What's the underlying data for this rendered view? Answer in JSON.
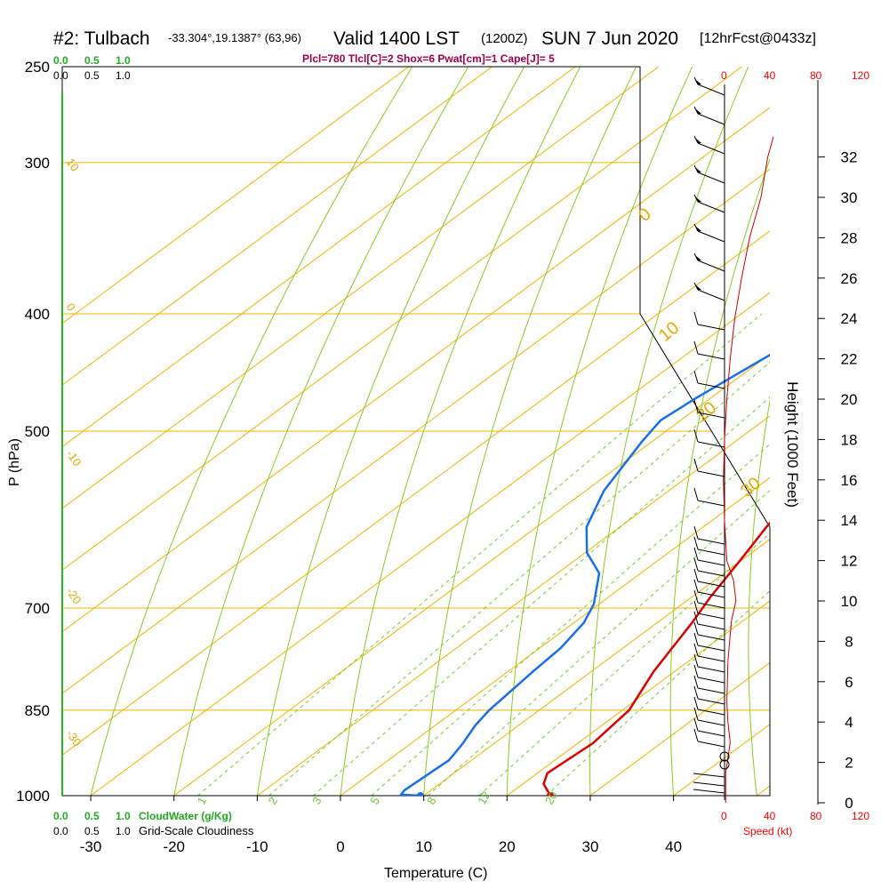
{
  "header": {
    "station": "#2: Tulbach",
    "coords": "-33.304°,19.1387° (63,96)",
    "valid": "Valid 1400 LST",
    "zulu": "(1200Z)",
    "date": "SUN 7 Jun 2020",
    "forecast": "[12hrFcst@0433z]"
  },
  "parameters": "Plcl=780 Tlcl[C]=2 Shox=6 Pwat[cm]=1 Cape[J]= 5",
  "legend": {
    "cloud_water_scale": [
      "0.0",
      "0.5",
      "1.0"
    ],
    "cloud_water_label": "CloudWater (g/Kg)",
    "cloudiness_scale": [
      "0.0",
      "0.5",
      "1.0"
    ],
    "cloudiness_label": "Grid-Scale Cloudiness",
    "speed_label": "Speed (kt)",
    "speed_ticks": [
      "0",
      "40",
      "80",
      "120"
    ]
  },
  "colors": {
    "isotherm": "#f0b400",
    "dry_adiabat": "#88cc22",
    "mixing_ratio": "#77cc33",
    "temperature": "#dd0000",
    "dewpoint": "#1a6fe8",
    "wind_speed": "#cc0000",
    "cloud_water": "#22aa22"
  },
  "chart_data": {
    "type": "line",
    "title": "#2: Tulbach Valid 1400 LST (1200Z) SUN 7 Jun 2020 [12hrFcst@0433z]",
    "xlabel": "Temperature (C)",
    "ylabel": "P (hPa)",
    "y2label": "Height (1000 Feet)",
    "x_ticks": [
      -30,
      -20,
      -10,
      0,
      10,
      20,
      30,
      40
    ],
    "p_ticks": [
      250,
      300,
      400,
      500,
      700,
      850,
      1000
    ],
    "height_ticks": [
      0,
      2,
      4,
      6,
      8,
      10,
      12,
      14,
      16,
      18,
      20,
      22,
      24,
      26,
      28,
      30,
      32
    ],
    "mixing_ratio_labels": [
      "1",
      "2",
      "3",
      "5",
      "8",
      "12",
      "20"
    ],
    "isotherm_labels": [
      "10",
      "0",
      "-10",
      "-20",
      "-30",
      "0",
      "10",
      "20",
      "30"
    ],
    "series": [
      {
        "name": "Temperature",
        "points": [
          [
            25.2,
            1000
          ],
          [
            22.5,
            978
          ],
          [
            21.2,
            958
          ],
          [
            21.8,
            905
          ],
          [
            20.8,
            850
          ],
          [
            17.5,
            790
          ],
          [
            14.2,
            720
          ],
          [
            12.2,
            685
          ],
          [
            9.9,
            640
          ],
          [
            7.6,
            600
          ],
          [
            6.1,
            570
          ],
          [
            3.5,
            530
          ],
          [
            1.2,
            500
          ],
          [
            -0.8,
            470
          ],
          [
            -3.2,
            440
          ],
          [
            -5.4,
            410
          ],
          [
            -7.3,
            380
          ],
          [
            -8.8,
            350
          ],
          [
            -10.6,
            320
          ],
          [
            -11.5,
            300
          ],
          [
            -12.2,
            280
          ],
          [
            -12.4,
            265
          ]
        ]
      },
      {
        "name": "Dewpoint",
        "points": [
          [
            9.6,
            1000
          ],
          [
            7.1,
            998
          ],
          [
            6.8,
            990
          ],
          [
            7.3,
            935
          ],
          [
            6.2,
            905
          ],
          [
            4.8,
            875
          ],
          [
            4.0,
            850
          ],
          [
            3.0,
            790
          ],
          [
            2.5,
            755
          ],
          [
            1.2,
            720
          ],
          [
            -0.6,
            695
          ],
          [
            -5.0,
            655
          ],
          [
            -9.8,
            630
          ],
          [
            -14.0,
            600
          ],
          [
            -17.8,
            560
          ],
          [
            -21.2,
            510
          ],
          [
            -22.4,
            490
          ],
          [
            -21.8,
            470
          ],
          [
            -20.3,
            440
          ],
          [
            -18.6,
            410
          ],
          [
            -15.2,
            380
          ],
          [
            -11.4,
            355
          ],
          [
            -7.0,
            338
          ],
          [
            -5.5,
            325
          ],
          [
            -7.5,
            300
          ],
          [
            -18.0,
            265
          ]
        ]
      }
    ],
    "wind_speed_profile_kt": [
      [
        0,
        1
      ],
      [
        1.5,
        1
      ],
      [
        3,
        5
      ],
      [
        4,
        3
      ],
      [
        5,
        2
      ],
      [
        7,
        3
      ],
      [
        9,
        6
      ],
      [
        10,
        10
      ],
      [
        11,
        8
      ],
      [
        12,
        2
      ],
      [
        14,
        0
      ],
      [
        16,
        -1
      ],
      [
        18,
        0
      ],
      [
        20,
        2
      ],
      [
        22,
        5
      ],
      [
        24,
        9
      ],
      [
        26,
        15
      ],
      [
        28,
        22
      ],
      [
        30,
        32
      ],
      [
        32,
        38
      ],
      [
        33,
        43
      ]
    ],
    "surface_temperature": 25.2,
    "surface_dewpoint": 9.6
  }
}
